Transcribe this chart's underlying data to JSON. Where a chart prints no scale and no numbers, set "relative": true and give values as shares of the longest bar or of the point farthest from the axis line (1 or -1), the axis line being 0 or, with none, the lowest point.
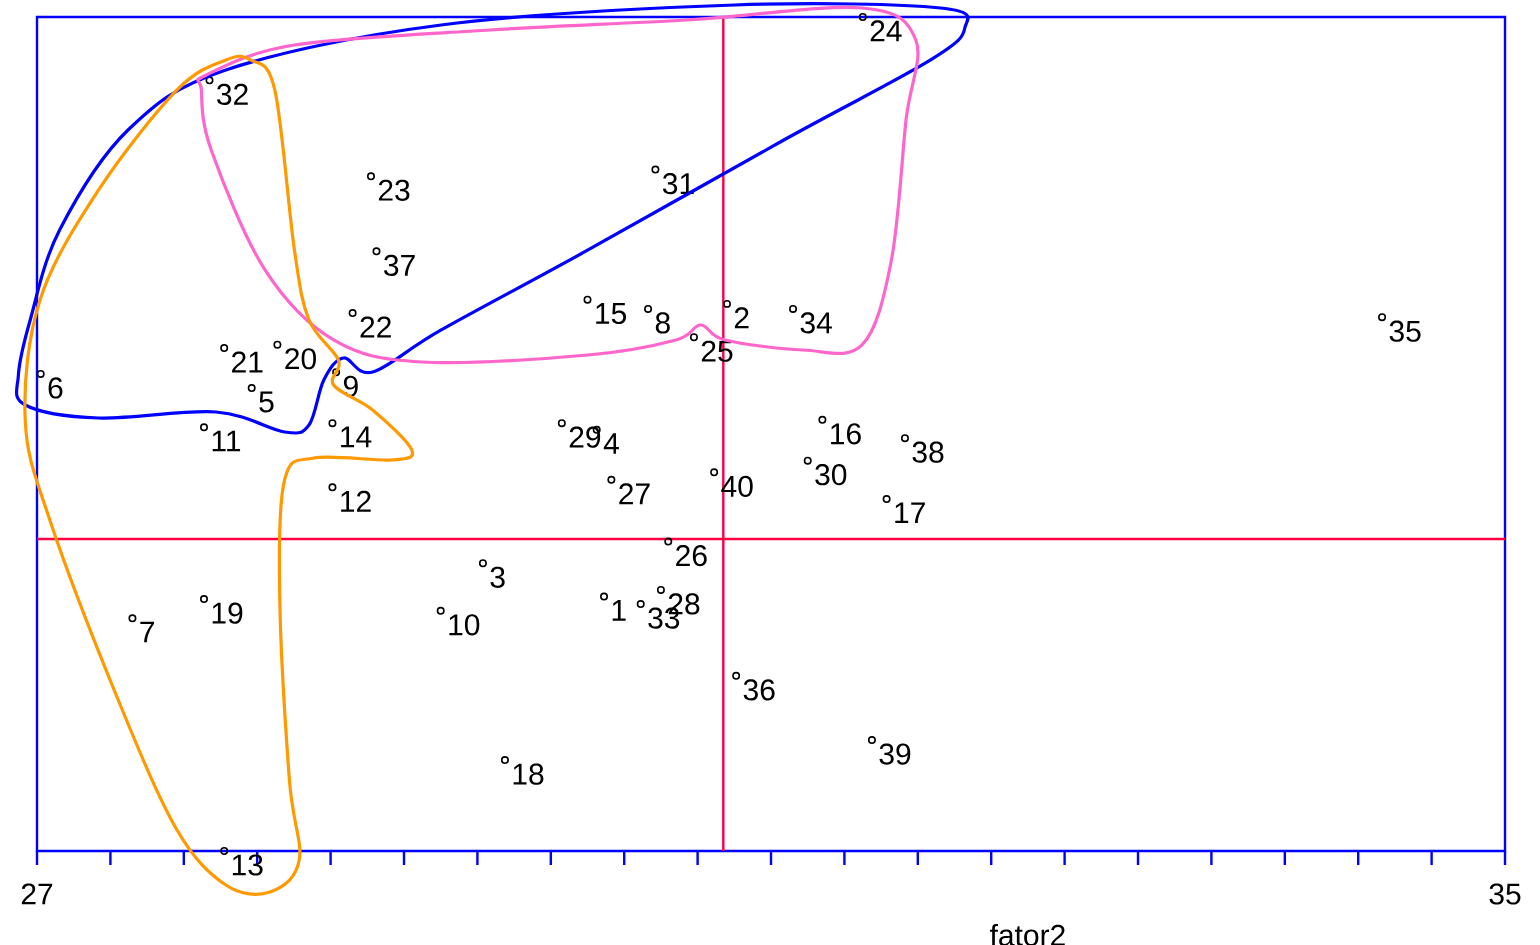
{
  "chart_data": {
    "type": "scatter",
    "xlabel": "fator2",
    "relative": true,
    "marker": "circle",
    "color": "#000000",
    "tick_labels": "x",
    "xlim": [
      27,
      35
    ],
    "xticks": [
      27,
      {
        "value": 27.4,
        "label": null
      },
      {
        "value": 27.8,
        "label": null
      },
      {
        "value": 28.2,
        "label": null
      },
      {
        "value": 28.6,
        "label": null
      },
      {
        "value": 29.0,
        "label": null
      },
      {
        "value": 29.4,
        "label": null
      },
      {
        "value": 29.8,
        "label": null
      },
      {
        "value": 30.2,
        "label": null
      },
      {
        "value": 30.6,
        "label": null
      },
      {
        "value": 31.0,
        "label": null
      },
      {
        "value": 31.4,
        "label": null
      },
      {
        "value": 31.8,
        "label": null
      },
      {
        "value": 32.2,
        "label": null
      },
      {
        "value": 32.6,
        "label": null
      },
      {
        "value": 33.0,
        "label": null
      },
      {
        "value": 33.4,
        "label": null
      },
      {
        "value": 33.8,
        "label": null
      },
      {
        "value": 34.2,
        "label": null
      },
      {
        "value": 34.6,
        "label": null
      },
      35
    ],
    "x": [
      30.09,
      30.76,
      29.43,
      30.05,
      28.17,
      27.02,
      27.52,
      30.33,
      28.63,
      29.2,
      27.91,
      28.61,
      28.02,
      28.61,
      30.0,
      31.28,
      31.63,
      29.55,
      27.91,
      28.31,
      28.02,
      28.72,
      28.82,
      31.5,
      30.58,
      30.44,
      30.13,
      30.4,
      29.86,
      31.2,
      30.37,
      27.94,
      30.29,
      31.12,
      34.33,
      30.81,
      28.85,
      31.73,
      31.55,
      30.69
    ],
    "values": [
      0.305,
      0.656,
      0.345,
      0.505,
      0.555,
      0.572,
      0.279,
      0.65,
      0.574,
      0.288,
      0.508,
      0.436,
      0.0,
      0.513,
      0.661,
      0.517,
      0.422,
      0.109,
      0.302,
      0.607,
      0.603,
      0.645,
      0.809,
      1.0,
      0.616,
      0.371,
      0.445,
      0.313,
      0.513,
      0.468,
      0.817,
      0.924,
      0.296,
      0.65,
      0.64,
      0.21,
      0.719,
      0.495,
      0.133,
      0.454
    ],
    "ref_lines": [
      {
        "axis": "x",
        "value": 30.74,
        "color": "#ff0044"
      },
      {
        "axis": "y",
        "value": 0.374,
        "color": "#ff0044"
      }
    ],
    "annotations": [
      {
        "text": "1",
        "x": 30.09,
        "y": 0.305
      },
      {
        "text": "2",
        "x": 30.76,
        "y": 0.656
      },
      {
        "text": "3",
        "x": 29.43,
        "y": 0.345
      },
      {
        "text": "4",
        "x": 30.05,
        "y": 0.505
      },
      {
        "text": "5",
        "x": 28.17,
        "y": 0.555
      },
      {
        "text": "6",
        "x": 27.02,
        "y": 0.572
      },
      {
        "text": "7",
        "x": 27.52,
        "y": 0.279
      },
      {
        "text": "8",
        "x": 30.33,
        "y": 0.65
      },
      {
        "text": "9",
        "x": 28.63,
        "y": 0.574
      },
      {
        "text": "10",
        "x": 29.2,
        "y": 0.288
      },
      {
        "text": "11",
        "x": 27.91,
        "y": 0.508
      },
      {
        "text": "12",
        "x": 28.61,
        "y": 0.436
      },
      {
        "text": "13",
        "x": 28.02,
        "y": 0.0
      },
      {
        "text": "14",
        "x": 28.61,
        "y": 0.513
      },
      {
        "text": "15",
        "x": 30.0,
        "y": 0.661
      },
      {
        "text": "16",
        "x": 31.28,
        "y": 0.517
      },
      {
        "text": "17",
        "x": 31.63,
        "y": 0.422
      },
      {
        "text": "18",
        "x": 29.55,
        "y": 0.109
      },
      {
        "text": "19",
        "x": 27.91,
        "y": 0.302
      },
      {
        "text": "20",
        "x": 28.31,
        "y": 0.607
      },
      {
        "text": "21",
        "x": 28.02,
        "y": 0.603
      },
      {
        "text": "22",
        "x": 28.72,
        "y": 0.645
      },
      {
        "text": "23",
        "x": 28.82,
        "y": 0.809
      },
      {
        "text": "24",
        "x": 31.5,
        "y": 1.0
      },
      {
        "text": "25",
        "x": 30.58,
        "y": 0.616
      },
      {
        "text": "26",
        "x": 30.44,
        "y": 0.371
      },
      {
        "text": "27",
        "x": 30.13,
        "y": 0.445
      },
      {
        "text": "28",
        "x": 30.4,
        "y": 0.313
      },
      {
        "text": "29",
        "x": 29.86,
        "y": 0.513
      },
      {
        "text": "30",
        "x": 31.2,
        "y": 0.468
      },
      {
        "text": "31",
        "x": 30.37,
        "y": 0.817
      },
      {
        "text": "32",
        "x": 27.94,
        "y": 0.924
      },
      {
        "text": "33",
        "x": 30.29,
        "y": 0.296
      },
      {
        "text": "34",
        "x": 31.12,
        "y": 0.65
      },
      {
        "text": "35",
        "x": 34.33,
        "y": 0.64
      },
      {
        "text": "36",
        "x": 30.81,
        "y": 0.21
      },
      {
        "text": "37",
        "x": 28.85,
        "y": 0.719
      },
      {
        "text": "38",
        "x": 31.73,
        "y": 0.495
      },
      {
        "text": "39",
        "x": 31.55,
        "y": 0.133
      },
      {
        "text": "40",
        "x": 30.69,
        "y": 0.454
      }
    ]
  }
}
